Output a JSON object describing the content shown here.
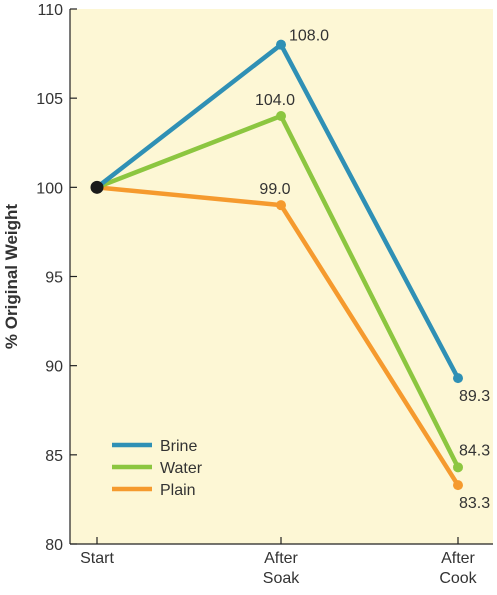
{
  "chart_data": {
    "type": "line",
    "ylabel": "% Original Weight",
    "xlabel": "",
    "title": "",
    "categories": [
      {
        "lines": [
          "Start"
        ]
      },
      {
        "lines": [
          "After",
          "Soak"
        ]
      },
      {
        "lines": [
          "After",
          "Cook"
        ]
      }
    ],
    "ylim": [
      80,
      110
    ],
    "yticks": [
      80,
      85,
      90,
      95,
      100,
      105,
      110
    ],
    "grid": false,
    "legend_position": "bottom-left",
    "plot_background": "#fdf7d5",
    "start_marker_color": "#1a1a1a",
    "series": [
      {
        "name": "Brine",
        "color": "#2f90b5",
        "values": [
          100,
          108.0,
          89.3
        ],
        "labels": [
          null,
          "108.0",
          "89.3"
        ],
        "label_side": [
          null,
          "right",
          "below"
        ]
      },
      {
        "name": "Water",
        "color": "#8cc640",
        "values": [
          100,
          104.0,
          84.3
        ],
        "labels": [
          null,
          "104.0",
          "84.3"
        ],
        "label_side": [
          null,
          "above",
          "above"
        ]
      },
      {
        "name": "Plain",
        "color": "#f59a2e",
        "values": [
          100,
          99.0,
          83.3
        ],
        "labels": [
          null,
          "99.0",
          "83.3"
        ],
        "label_side": [
          null,
          "above",
          "below"
        ]
      }
    ]
  }
}
